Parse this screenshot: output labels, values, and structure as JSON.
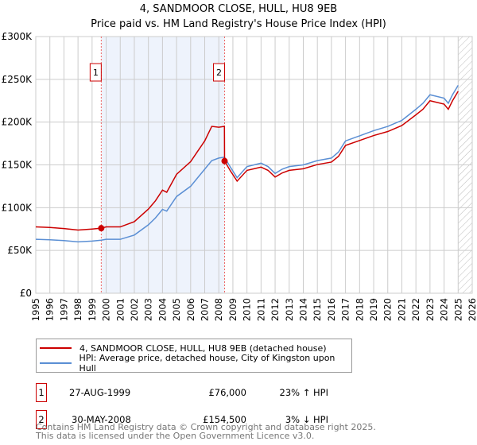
{
  "chart_data": {
    "type": "line",
    "title": "4, SANDMOOR CLOSE, HULL, HU8 9EB",
    "subtitle": "Price paid vs. HM Land Registry's House Price Index (HPI)",
    "xlim": [
      1995,
      2026
    ],
    "ylim": [
      0,
      300000
    ],
    "y_ticks": [
      {
        "v": 0,
        "label": "£0"
      },
      {
        "v": 50000,
        "label": "£50K"
      },
      {
        "v": 100000,
        "label": "£100K"
      },
      {
        "v": 150000,
        "label": "£150K"
      },
      {
        "v": 200000,
        "label": "£200K"
      },
      {
        "v": 250000,
        "label": "£250K"
      },
      {
        "v": 300000,
        "label": "£300K"
      }
    ],
    "x_ticks": [
      "1995",
      "1996",
      "1997",
      "1998",
      "1999",
      "2000",
      "2001",
      "2002",
      "2003",
      "2004",
      "2005",
      "2006",
      "2007",
      "2008",
      "2009",
      "2010",
      "2011",
      "2012",
      "2013",
      "2014",
      "2015",
      "2016",
      "2017",
      "2018",
      "2019",
      "2020",
      "2021",
      "2022",
      "2023",
      "2024",
      "2025",
      "2026"
    ],
    "grid": true,
    "series": [
      {
        "name": "4, SANDMOOR CLOSE, HULL, HU8 9EB (detached house)",
        "color": "#cc0000",
        "x": [
          1995,
          1996,
          1997,
          1998,
          1999,
          1999.65,
          2000,
          2001,
          2002,
          2003,
          2003.5,
          2004,
          2004.3,
          2005,
          2006,
          2006.5,
          2007,
          2007.5,
          2008,
          2008.4,
          2008.41,
          2008.8,
          2009.3,
          2010,
          2010.5,
          2011,
          2011.5,
          2012,
          2012.5,
          2013,
          2014,
          2015,
          2016,
          2016.5,
          2017,
          2018,
          2019,
          2020,
          2021,
          2022,
          2022.5,
          2023,
          2024,
          2024.3,
          2024.6,
          2025
        ],
        "y": [
          77500,
          76900,
          75600,
          73800,
          75000,
          76000,
          77500,
          77500,
          83600,
          98400,
          108000,
          120500,
          118000,
          139000,
          153800,
          166000,
          178000,
          195000,
          194000,
          195000,
          154500,
          143600,
          131000,
          143600,
          145500,
          147400,
          143600,
          135800,
          140600,
          143600,
          145500,
          150400,
          153300,
          160000,
          172700,
          178500,
          184300,
          189000,
          196000,
          208500,
          215000,
          225000,
          221000,
          215000,
          225000,
          236000
        ]
      },
      {
        "name": "HPI: Average price, detached house, City of Kingston upon Hull",
        "color": "#5b8fd4",
        "x": [
          1995,
          1996,
          1997,
          1998,
          1999,
          1999.65,
          2000,
          2001,
          2002,
          2003,
          2003.5,
          2004,
          2004.3,
          2005,
          2006,
          2006.5,
          2007,
          2007.5,
          2008,
          2008.4,
          2008.8,
          2009.3,
          2010,
          2010.5,
          2011,
          2011.5,
          2012,
          2012.5,
          2013,
          2014,
          2015,
          2016,
          2016.5,
          2017,
          2018,
          2019,
          2020,
          2021,
          2022,
          2022.5,
          2023,
          2024,
          2024.3,
          2024.6,
          2025
        ],
        "y": [
          63000,
          62500,
          61500,
          60000,
          61000,
          62000,
          63000,
          63000,
          68000,
          80000,
          88000,
          98000,
          96000,
          113000,
          125000,
          135000,
          145000,
          155000,
          158000,
          159000,
          148000,
          135000,
          148000,
          150000,
          152000,
          148000,
          140000,
          145000,
          148000,
          150000,
          155000,
          158000,
          165000,
          178000,
          184000,
          190000,
          195000,
          202000,
          215000,
          222000,
          232000,
          228000,
          222000,
          232000,
          243000
        ]
      }
    ],
    "annotations": [
      {
        "label": "1",
        "x": 1999.65,
        "y": 76000
      },
      {
        "label": "2",
        "x": 2008.41,
        "y": 154500
      }
    ],
    "shaded_range": [
      1999.65,
      2008.41
    ],
    "hatched_from": 2025.0
  },
  "legend": {
    "items": [
      {
        "label": "4, SANDMOOR CLOSE, HULL, HU8 9EB (detached house)",
        "color": "#cc0000"
      },
      {
        "label": "HPI: Average price, detached house, City of Kingston upon Hull",
        "color": "#5b8fd4"
      }
    ]
  },
  "sales": [
    {
      "num": "1",
      "date": "27-AUG-1999",
      "price": "£76,000",
      "hpi": "23% ↑ HPI"
    },
    {
      "num": "2",
      "date": "30-MAY-2008",
      "price": "£154,500",
      "hpi": "3% ↓ HPI"
    }
  ],
  "footer": {
    "line1": "Contains HM Land Registry data © Crown copyright and database right 2025.",
    "line2": "This data is licensed under the Open Government Licence v3.0."
  }
}
